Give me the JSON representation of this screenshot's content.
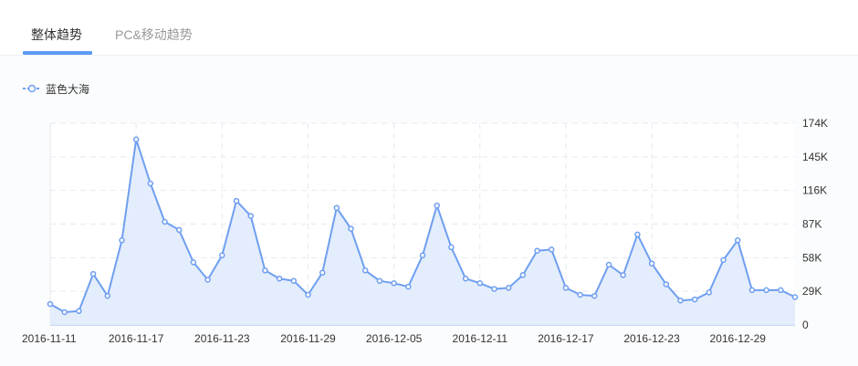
{
  "tabs": [
    {
      "label": "整体趋势",
      "active": true
    },
    {
      "label": "PC&移动趋势",
      "active": false
    }
  ],
  "colors": {
    "accent": "#5b9bf8",
    "line": "#6f9ff0",
    "area": "#e4edfc",
    "grid": "#e6e9ef",
    "axis_text": "#333333"
  },
  "chart_data": {
    "type": "area",
    "legend_position": "top-left",
    "grid": true,
    "x": [
      "2016-11-11",
      "2016-11-12",
      "2016-11-13",
      "2016-11-14",
      "2016-11-15",
      "2016-11-16",
      "2016-11-17",
      "2016-11-18",
      "2016-11-19",
      "2016-11-20",
      "2016-11-21",
      "2016-11-22",
      "2016-11-23",
      "2016-11-24",
      "2016-11-25",
      "2016-11-26",
      "2016-11-27",
      "2016-11-28",
      "2016-11-29",
      "2016-11-30",
      "2016-12-01",
      "2016-12-02",
      "2016-12-03",
      "2016-12-04",
      "2016-12-05",
      "2016-12-06",
      "2016-12-07",
      "2016-12-08",
      "2016-12-09",
      "2016-12-10",
      "2016-12-11",
      "2016-12-12",
      "2016-12-13",
      "2016-12-14",
      "2016-12-15",
      "2016-12-16",
      "2016-12-17",
      "2016-12-18",
      "2016-12-19",
      "2016-12-20",
      "2016-12-21",
      "2016-12-22",
      "2016-12-23",
      "2016-12-24",
      "2016-12-25",
      "2016-12-26",
      "2016-12-27",
      "2016-12-28",
      "2016-12-29",
      "2016-12-30",
      "2016-12-31",
      "2017-01-01",
      "2017-01-02"
    ],
    "xticks": [
      "2016-11-11",
      "2016-11-17",
      "2016-11-23",
      "2016-11-29",
      "2016-12-05",
      "2016-12-11",
      "2016-12-17",
      "2016-12-23",
      "2016-12-29"
    ],
    "ylim": [
      0,
      174000
    ],
    "yticks": [
      0,
      29000,
      58000,
      87000,
      116000,
      145000,
      174000
    ],
    "ytick_labels": [
      "0",
      "29K",
      "58K",
      "87K",
      "116K",
      "145K",
      "174K"
    ],
    "series": [
      {
        "name": "蓝色大海",
        "values": [
          18000,
          11000,
          12000,
          44000,
          25000,
          73000,
          160000,
          122000,
          89000,
          82000,
          54000,
          39000,
          60000,
          107000,
          94000,
          47000,
          40000,
          38000,
          26000,
          45000,
          101000,
          83000,
          47000,
          38000,
          36000,
          33000,
          60000,
          103000,
          67000,
          40000,
          36000,
          31000,
          32000,
          43000,
          64000,
          65000,
          32000,
          26000,
          25000,
          52000,
          43000,
          78000,
          53000,
          35000,
          21000,
          22000,
          28000,
          56000,
          73000,
          30000,
          30000,
          30000,
          24000
        ]
      }
    ]
  }
}
